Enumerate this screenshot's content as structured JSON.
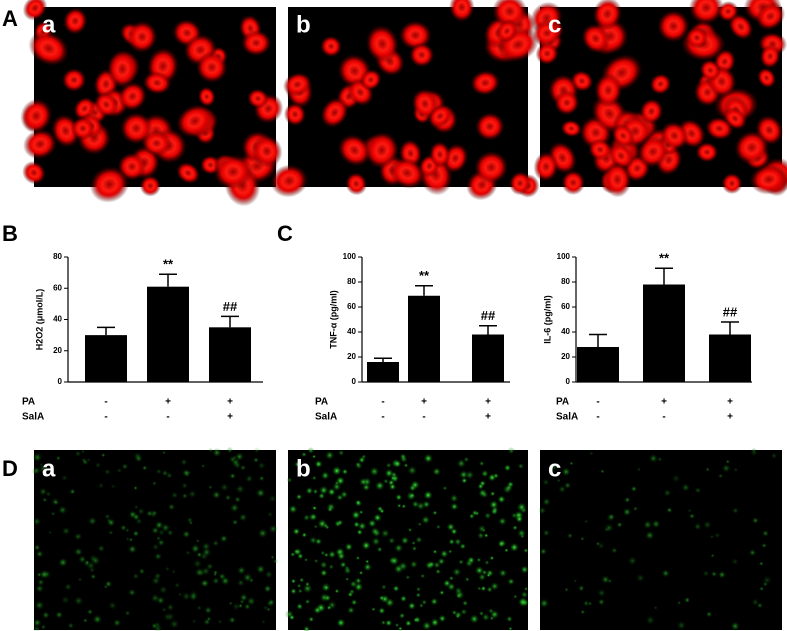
{
  "panels": {
    "A": "A",
    "B": "B",
    "C": "C",
    "D": "D"
  },
  "images_top": [
    "a",
    "b",
    "c"
  ],
  "images_bottom": [
    "a",
    "b",
    "c"
  ],
  "chart_data": [
    {
      "type": "bar",
      "y_label": "H2O2 (μmol/L)",
      "values": [
        30,
        61,
        35
      ],
      "errors": [
        5,
        8,
        7
      ],
      "color": "#000000",
      "ylim": [
        0,
        80
      ],
      "yticks": [
        0,
        20,
        40,
        60,
        80
      ],
      "conditions": [
        {
          "name": "PA",
          "labels": [
            "-",
            "+",
            "+"
          ]
        },
        {
          "name": "SalA",
          "labels": [
            "-",
            "-",
            "+"
          ]
        }
      ],
      "annotations": [
        {
          "index": 1,
          "text": "**"
        },
        {
          "index": 2,
          "text": "##"
        }
      ]
    },
    {
      "type": "bar",
      "y_label": "TNF-α  (pg/ml)",
      "values": [
        16,
        69,
        38
      ],
      "errors": [
        3,
        8,
        7
      ],
      "color": "#000000",
      "ylim": [
        0,
        100
      ],
      "yticks": [
        0,
        20,
        40,
        60,
        80,
        100
      ],
      "conditions": [
        {
          "name": "PA",
          "labels": [
            "-",
            "+",
            "+"
          ]
        },
        {
          "name": "SalA",
          "labels": [
            "-",
            "-",
            "+"
          ]
        }
      ],
      "annotations": [
        {
          "index": 1,
          "text": "**"
        },
        {
          "index": 2,
          "text": "##"
        }
      ]
    },
    {
      "type": "bar",
      "y_label": "IL-6 (pg/ml)",
      "values": [
        28,
        78,
        38
      ],
      "errors": [
        10,
        13,
        10
      ],
      "color": "#000000",
      "ylim": [
        0,
        100
      ],
      "yticks": [
        0,
        20,
        40,
        60,
        80,
        100
      ],
      "conditions": [
        {
          "name": "PA",
          "labels": [
            "-",
            "+",
            "+"
          ]
        },
        {
          "name": "SalA",
          "labels": [
            "-",
            "-",
            "+"
          ]
        }
      ],
      "annotations": [
        {
          "index": 1,
          "text": "**"
        },
        {
          "index": 2,
          "text": "##"
        }
      ]
    }
  ]
}
